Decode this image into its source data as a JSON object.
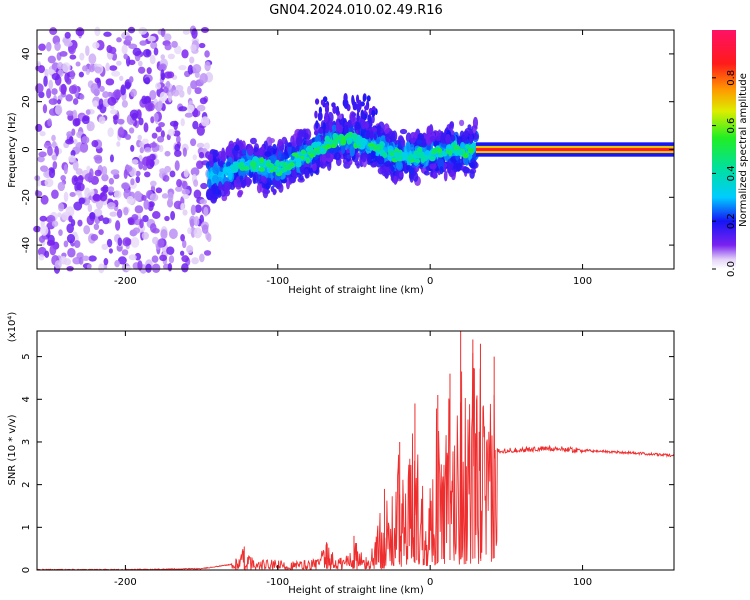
{
  "title": "GN04.2024.010.02.49.R16",
  "colors": {
    "snr_line": "#ee2e2e",
    "axis": "#000000",
    "background": "#ffffff"
  },
  "chart_data": [
    {
      "type": "heatmap",
      "title": "GN04.2024.010.02.49.R16",
      "xlabel": "Height of straight line (km)",
      "ylabel": "Frequency (Hz)",
      "xlim": [
        -258,
        160
      ],
      "ylim": [
        -50,
        50
      ],
      "xticks": [
        -200,
        -100,
        0,
        100
      ],
      "yticks": [
        -40,
        -20,
        0,
        20,
        40
      ],
      "colorbar": {
        "label": "Normalized spectral amplitude",
        "range": [
          0,
          1
        ],
        "ticks": [
          "0.0",
          "0.2",
          "0.4",
          "0.6",
          "0.8"
        ],
        "colormap": "rainbow (white-purple-blue-cyan-green-yellow-red-magenta)"
      },
      "regions": [
        {
          "x_range": [
            -258,
            -145
          ],
          "y_range": [
            -50,
            50
          ],
          "amplitude": 0.05,
          "note": "scattered noise"
        },
        {
          "x_range": [
            -145,
            30
          ],
          "y_range": [
            -15,
            15
          ],
          "amplitude": 0.3,
          "note": "dense band around the trend"
        },
        {
          "x_range": [
            30,
            160
          ],
          "y_center": 0,
          "amplitude": 0.9,
          "note": "narrow line at 0 Hz"
        }
      ],
      "center_trend": [
        {
          "x": -145,
          "y": -12
        },
        {
          "x": -120,
          "y": -6
        },
        {
          "x": -100,
          "y": -8
        },
        {
          "x": -80,
          "y": -2
        },
        {
          "x": -60,
          "y": 5
        },
        {
          "x": -40,
          "y": 3
        },
        {
          "x": -20,
          "y": -3
        },
        {
          "x": 0,
          "y": -2
        },
        {
          "x": 15,
          "y": 0
        },
        {
          "x": 30,
          "y": 0
        },
        {
          "x": 160,
          "y": 0
        }
      ]
    },
    {
      "type": "line",
      "xlabel": "Height of straight line (km)",
      "ylabel": "SNR (10 * v/v)",
      "yscale_label": "(x10⁴)",
      "xlim": [
        -258,
        160
      ],
      "ylim": [
        0,
        5.6
      ],
      "xticks": [
        -200,
        -100,
        0,
        100
      ],
      "yticks": [
        0,
        1,
        2,
        3,
        4,
        5
      ],
      "series": [
        {
          "points": [
            {
              "x": -258,
              "y": 0.0
            },
            {
              "x": -200,
              "y": 0.0
            },
            {
              "x": -150,
              "y": 0.02
            },
            {
              "x": -125,
              "y": 0.15
            },
            {
              "x": -110,
              "y": 0.25
            },
            {
              "x": -90,
              "y": 0.22
            },
            {
              "x": -70,
              "y": 0.3
            },
            {
              "x": -55,
              "y": 0.35
            },
            {
              "x": -40,
              "y": 0.3
            },
            {
              "x": -35,
              "y": 0.6
            },
            {
              "x": -25,
              "y": 1.1
            },
            {
              "x": -15,
              "y": 1.5
            },
            {
              "x": -5,
              "y": 1.8
            },
            {
              "x": 5,
              "y": 2.1
            },
            {
              "x": 15,
              "y": 2.4
            },
            {
              "x": 25,
              "y": 2.6
            },
            {
              "x": 35,
              "y": 2.7
            },
            {
              "x": 44,
              "y": 2.8
            },
            {
              "x": 50,
              "y": 2.8
            },
            {
              "x": 80,
              "y": 2.85
            },
            {
              "x": 100,
              "y": 2.8
            },
            {
              "x": 130,
              "y": 2.75
            },
            {
              "x": 160,
              "y": 2.68
            }
          ],
          "peaks": [
            {
              "x": -122,
              "y": 0.55
            },
            {
              "x": -68,
              "y": 0.65
            },
            {
              "x": -50,
              "y": 0.8
            },
            {
              "x": -30,
              "y": 1.9
            },
            {
              "x": -20,
              "y": 3.0
            },
            {
              "x": -10,
              "y": 3.9
            },
            {
              "x": 5,
              "y": 4.1
            },
            {
              "x": 13,
              "y": 4.6
            },
            {
              "x": 20,
              "y": 5.6
            },
            {
              "x": 28,
              "y": 5.4
            },
            {
              "x": 33,
              "y": 5.3
            },
            {
              "x": 42,
              "y": 5.0
            }
          ]
        }
      ]
    }
  ]
}
